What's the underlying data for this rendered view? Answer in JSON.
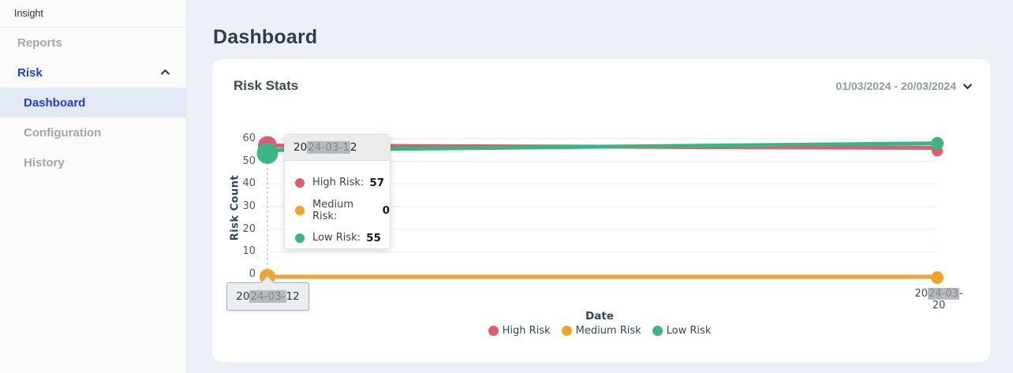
{
  "sidebar": {
    "brand": "Insight",
    "items": [
      {
        "label": "Reports"
      },
      {
        "label": "Risk"
      },
      {
        "label": "Dashboard"
      },
      {
        "label": "Configuration"
      },
      {
        "label": "History"
      }
    ]
  },
  "header": {
    "title": "Dashboard"
  },
  "card": {
    "title": "Risk Stats",
    "date_range": "01/03/2024 - 20/03/2024"
  },
  "tooltip": {
    "date": {
      "prefix": "20",
      "redacted": "24-03-1",
      "suffix": "2"
    },
    "rows": [
      {
        "label": "High Risk:",
        "value": "57"
      },
      {
        "label": "Medium Risk:",
        "value": "0"
      },
      {
        "label": "Low Risk:",
        "value": "55"
      }
    ]
  },
  "axis": {
    "x_left": {
      "prefix": "20",
      "redacted": "24-03-",
      "suffix": "12"
    },
    "x_right": {
      "prefix": "20",
      "redacted": "24-03",
      "suffix": "-20"
    }
  },
  "chart_data": {
    "type": "line",
    "x": [
      "2024-03-12",
      "2024-03-20"
    ],
    "series": [
      {
        "name": "High Risk",
        "color": "#e05c6e",
        "values": [
          57,
          56
        ]
      },
      {
        "name": "Medium Risk",
        "color": "#f0a32a",
        "values": [
          0,
          0
        ]
      },
      {
        "name": "Low Risk",
        "color": "#3ab583",
        "values": [
          55,
          58
        ]
      }
    ],
    "xlabel": "Date",
    "ylabel": "Risk Count",
    "ylim": [
      0,
      60
    ],
    "yticks": [
      0,
      10,
      20,
      30,
      40,
      50,
      60
    ],
    "grid": "horizontal",
    "legend_position": "bottom",
    "hovered_point": {
      "x": "2024-03-12",
      "High Risk": 57,
      "Medium Risk": 0,
      "Low Risk": 55
    }
  },
  "colors": {
    "accent_blue": "#1e42c8",
    "sidebar_active_bg": "#e4e9f6",
    "page_bg": "#edf1f7"
  }
}
